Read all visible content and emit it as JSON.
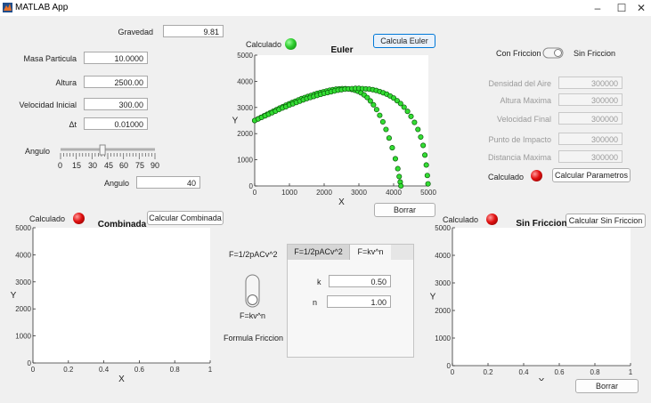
{
  "window": {
    "title": "MATLAB App",
    "minimize_glyph": "–",
    "maximize_glyph": "☐",
    "close_glyph": "✕"
  },
  "params": {
    "gravedad_label": "Gravedad",
    "gravedad_value": "9.81",
    "masa_label": "Masa Particula",
    "masa_value": "10.0000",
    "altura_label": "Altura",
    "altura_value": "2500.00",
    "velocidad_label": "Velocidad Inicial",
    "velocidad_value": "300.00",
    "dt_label": "Δt",
    "dt_value": "0.01000",
    "angulo_slider_label": "Angulo",
    "angulo_ticks": [
      "0",
      "15",
      "30",
      "45",
      "60",
      "75",
      "90"
    ],
    "angulo_slider_value": 40,
    "angulo_label": "Angulo",
    "angulo_value": "40"
  },
  "euler": {
    "calc_label": "Calculado",
    "lamp": "green",
    "title": "Euler",
    "button": "Calcula Euler",
    "borrar": "Borrar",
    "xlabel": "X",
    "ylabel": "Y",
    "xticks": [
      "0",
      "1000",
      "2000",
      "3000",
      "4000",
      "5000"
    ],
    "yticks": [
      "0",
      "1000",
      "2000",
      "3000",
      "4000",
      "5000"
    ]
  },
  "friccion": {
    "con_label": "Con Friccion",
    "sin_label": "Sin Friccion",
    "fields": [
      {
        "label": "Densidad del Aire",
        "value": "300000"
      },
      {
        "label": "Altura Maxima",
        "value": "300000"
      },
      {
        "label": "Velocidad Final",
        "value": "300000"
      },
      {
        "label": "Punto de Impacto",
        "value": "300000"
      },
      {
        "label": "Distancia Maxima",
        "value": "300000"
      }
    ],
    "calc_label": "Calculado",
    "lamp": "red",
    "button": "Calcular Parametros"
  },
  "combinada": {
    "calc_label": "Calculado",
    "lamp": "red",
    "title": "Combinada",
    "button": "Calcular Combinada",
    "xlabel": "X",
    "ylabel": "Y",
    "xticks": [
      "0",
      "0.2",
      "0.4",
      "0.6",
      "0.8",
      "1"
    ],
    "yticks": [
      "0",
      "1000",
      "2000",
      "3000",
      "4000",
      "5000"
    ]
  },
  "formula": {
    "top_label": "F=1/2pACv^2",
    "bottom_label": "F=kv^n",
    "caption": "Formula Friccion",
    "tabs": [
      "F=1/2pACv^2",
      "F=kv^n"
    ],
    "k_label": "k",
    "k_value": "0.50",
    "n_label": "n",
    "n_value": "1.00"
  },
  "sinfriccion": {
    "calc_label": "Calculado",
    "lamp": "red",
    "title": "Sin Friccion",
    "button": "Calcular Sin Friccion",
    "borrar": "Borrar",
    "xlabel": "X",
    "ylabel": "Y",
    "xticks": [
      "0",
      "0.2",
      "0.4",
      "0.6",
      "0.8",
      "1"
    ],
    "yticks": [
      "0",
      "1000",
      "2000",
      "3000",
      "4000",
      "5000"
    ]
  },
  "chart_data": [
    {
      "type": "scatter",
      "title": "Euler",
      "xlabel": "X",
      "ylabel": "Y",
      "xlim": [
        0,
        5000
      ],
      "ylim": [
        0,
        5000
      ],
      "grid": false,
      "series": [
        {
          "x": [
            0,
            90,
            180,
            270,
            360,
            450,
            540,
            630,
            720,
            810,
            900,
            990,
            1080,
            1170,
            1260,
            1350,
            1440,
            1530,
            1620,
            1710,
            1800,
            1890,
            1980,
            2070,
            2160,
            2250,
            2340,
            2430,
            2520,
            2610,
            2700,
            2790,
            2880,
            2970,
            3060,
            3150,
            3240,
            3330,
            3420,
            3510,
            3600,
            3690,
            3780,
            3870,
            3960,
            4050,
            4120,
            4160,
            4190,
            4210
          ],
          "y": [
            2500,
            2560,
            2620,
            2680,
            2740,
            2800,
            2860,
            2920,
            2980,
            3030,
            3090,
            3140,
            3190,
            3240,
            3290,
            3340,
            3380,
            3420,
            3460,
            3500,
            3540,
            3570,
            3600,
            3630,
            3660,
            3680,
            3700,
            3710,
            3720,
            3720,
            3710,
            3690,
            3660,
            3620,
            3560,
            3480,
            3380,
            3250,
            3100,
            2920,
            2700,
            2450,
            2160,
            1830,
            1460,
            1040,
            660,
            360,
            150,
            0
          ]
        },
        {
          "x": [
            0,
            100,
            200,
            300,
            400,
            500,
            600,
            700,
            800,
            900,
            1000,
            1100,
            1200,
            1300,
            1400,
            1500,
            1600,
            1700,
            1800,
            1900,
            2000,
            2100,
            2200,
            2300,
            2400,
            2500,
            2600,
            2700,
            2800,
            2900,
            3000,
            3100,
            3200,
            3300,
            3400,
            3500,
            3600,
            3700,
            3800,
            3900,
            4000,
            4100,
            4200,
            4300,
            4400,
            4500,
            4600,
            4700,
            4780,
            4850,
            4900,
            4940,
            4970,
            4990
          ],
          "y": [
            2500,
            2560,
            2620,
            2680,
            2740,
            2800,
            2860,
            2920,
            2980,
            3030,
            3090,
            3140,
            3190,
            3240,
            3290,
            3340,
            3380,
            3420,
            3460,
            3500,
            3540,
            3570,
            3600,
            3630,
            3660,
            3680,
            3700,
            3710,
            3720,
            3730,
            3730,
            3720,
            3710,
            3700,
            3680,
            3650,
            3610,
            3560,
            3510,
            3440,
            3360,
            3260,
            3150,
            3010,
            2850,
            2660,
            2430,
            2160,
            1870,
            1550,
            1180,
            800,
            400,
            80
          ]
        }
      ]
    }
  ]
}
